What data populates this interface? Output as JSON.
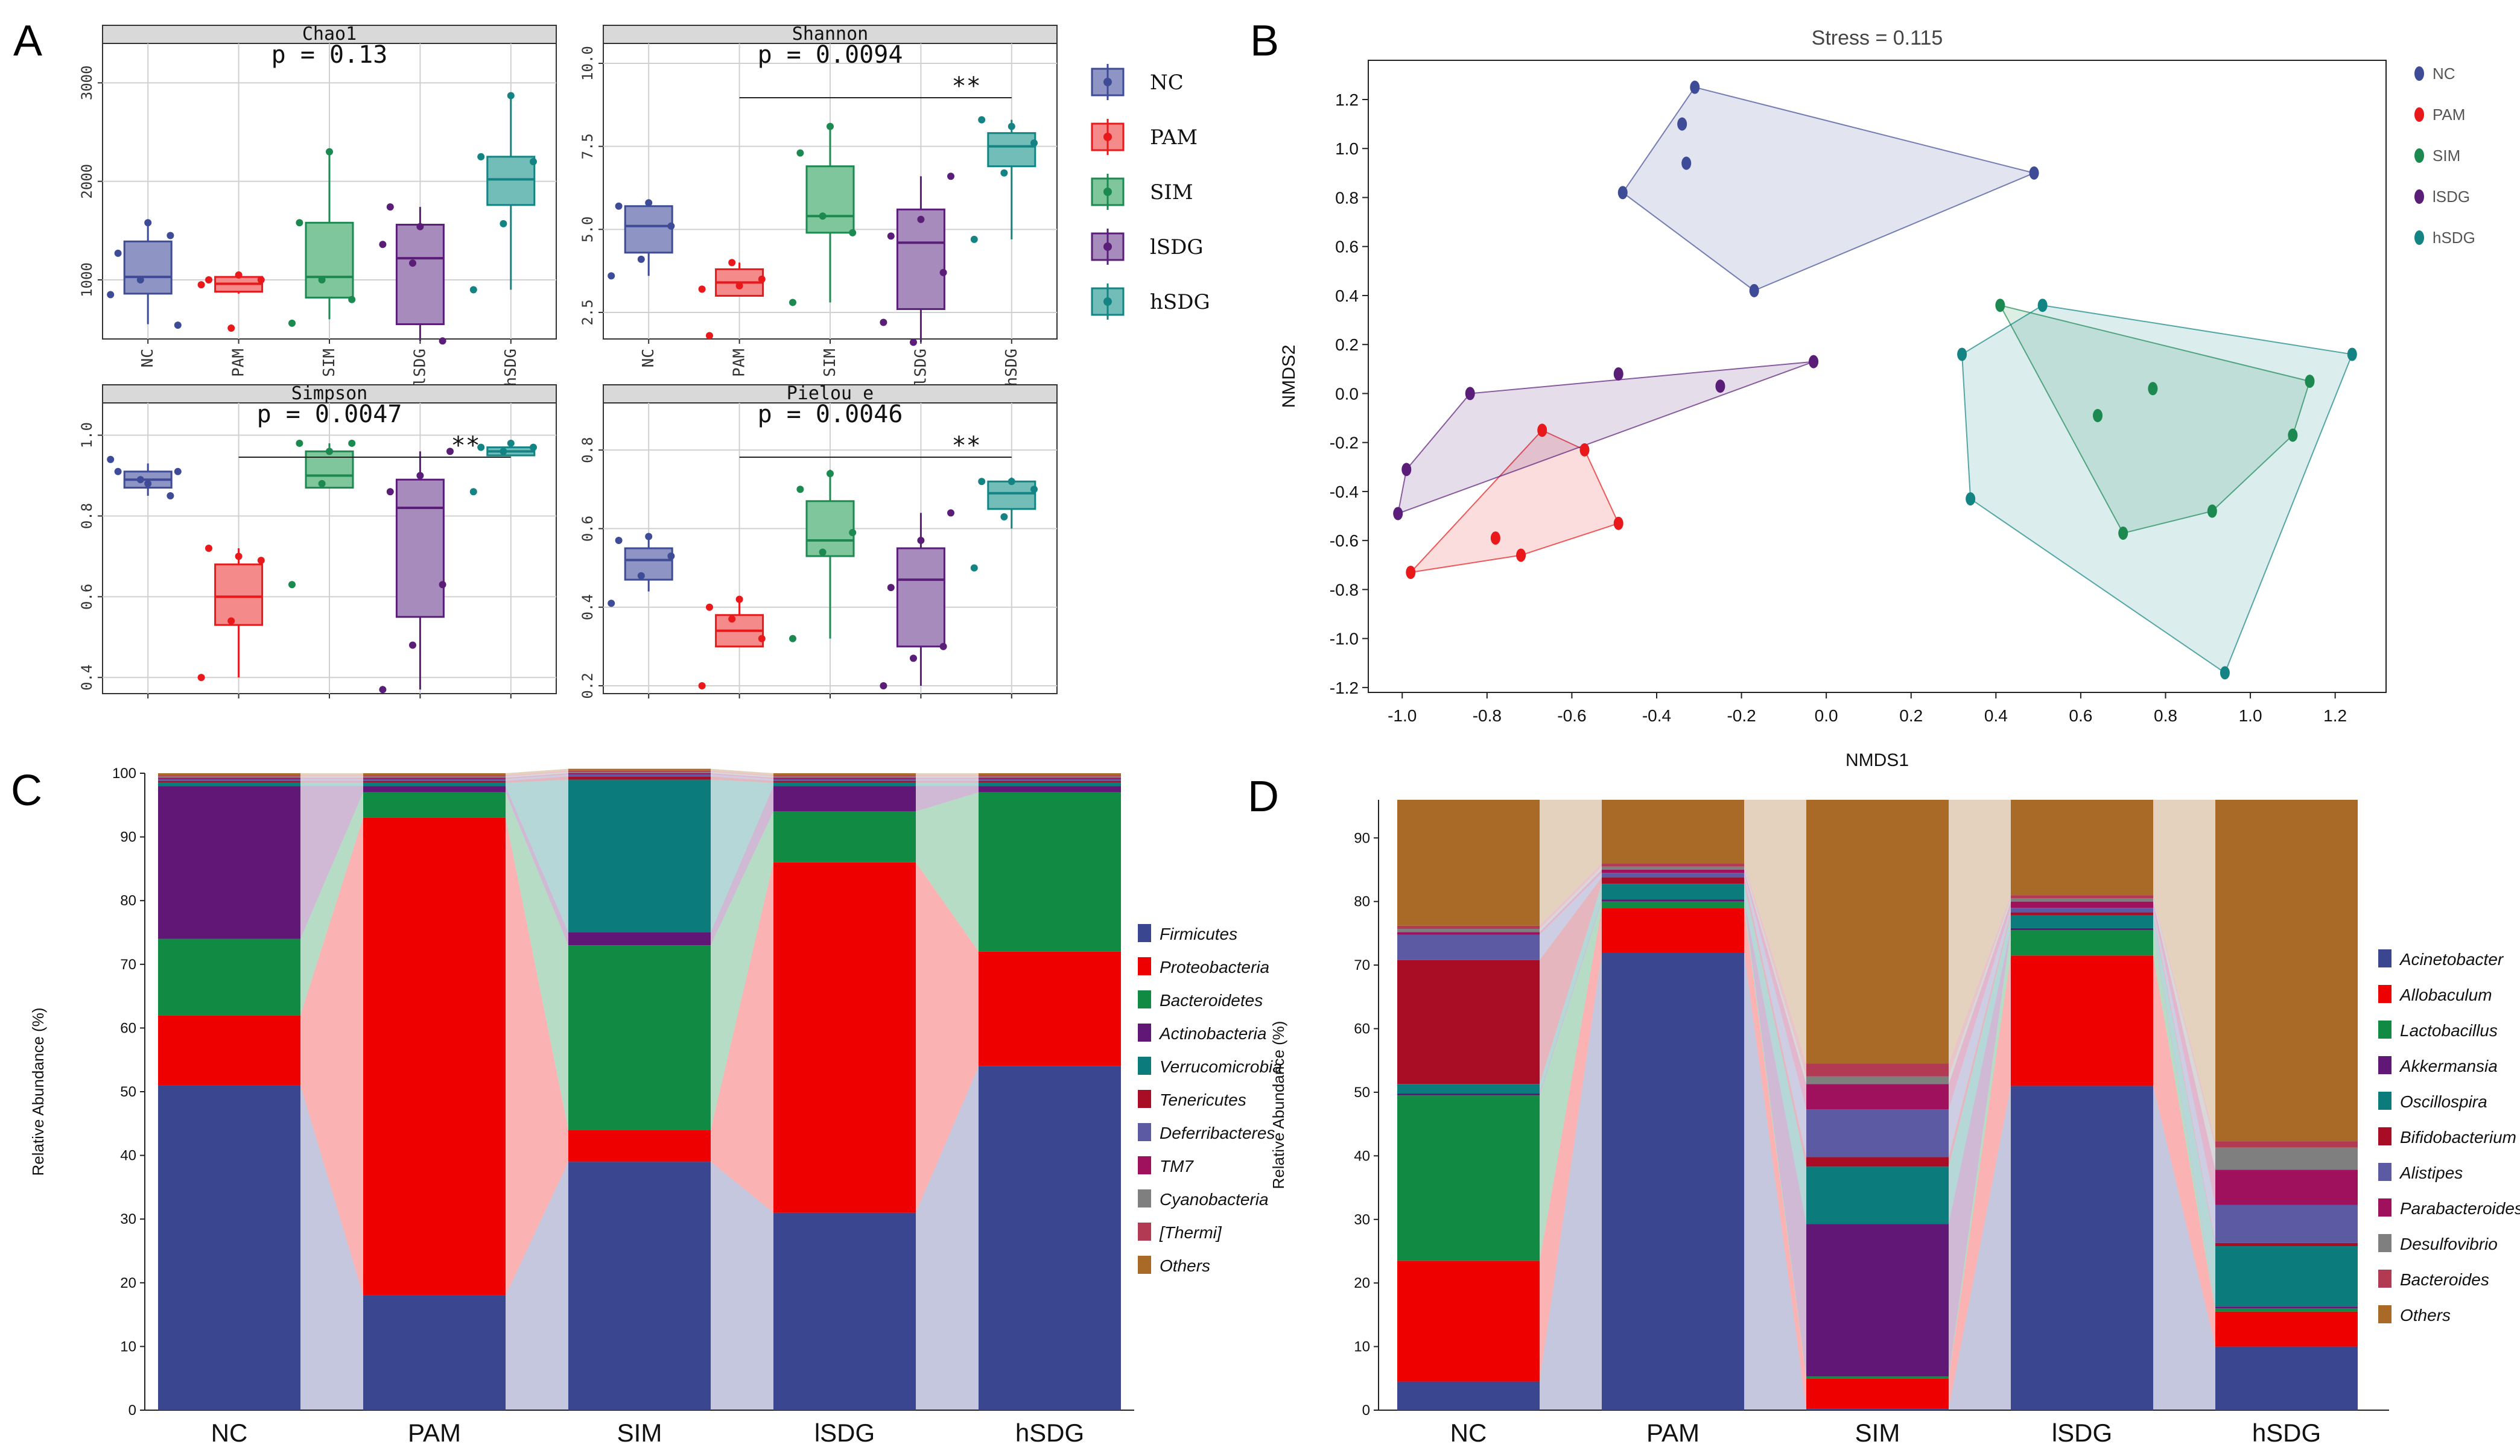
{
  "panel_labels": {
    "a": "A",
    "b": "B",
    "c": "C",
    "d": "D"
  },
  "groups": [
    "NC",
    "PAM",
    "SIM",
    "lSDG",
    "hSDG"
  ],
  "group_colors": [
    "#3e4b96",
    "#e8181b",
    "#1c8a50",
    "#5a1d78",
    "#138483"
  ],
  "box_fills": [
    "#8e94c4",
    "#f58a8a",
    "#7fc69c",
    "#a78bbd",
    "#72bdb8"
  ],
  "chart_data": [
    {
      "type": "box",
      "panel": "A",
      "title": "Chao1",
      "pvalue_text": "p = 0.13",
      "stars": "",
      "ylim": [
        400,
        3400
      ],
      "yticks": [
        "1000",
        "2000",
        "3000"
      ],
      "ytick_values": [
        1000,
        2000,
        3000
      ],
      "categories": [
        "NC",
        "PAM",
        "SIM",
        "lSDG",
        "hSDG"
      ],
      "boxes": [
        {
          "group": "NC",
          "whisker_low": 550,
          "q1": 860,
          "median": 1030,
          "q3": 1390,
          "whisker_high": 1590
        },
        {
          "group": "PAM",
          "whisker_low": 860,
          "q1": 880,
          "median": 960,
          "q3": 1030,
          "whisker_high": 1060
        },
        {
          "group": "SIM",
          "whisker_low": 600,
          "q1": 820,
          "median": 1030,
          "q3": 1580,
          "whisker_high": 2300
        },
        {
          "group": "lSDG",
          "whisker_low": 380,
          "q1": 550,
          "median": 1220,
          "q3": 1560,
          "whisker_high": 1740
        },
        {
          "group": "hSDG",
          "whisker_low": 900,
          "q1": 1760,
          "median": 2020,
          "q3": 2250,
          "whisker_high": 2850
        }
      ],
      "points": [
        [
          850,
          1000,
          1450,
          1270,
          1580,
          540
        ],
        [
          950,
          510,
          1000,
          1000,
          1050
        ],
        [
          560,
          1000,
          800,
          1580,
          2300
        ],
        [
          1360,
          1170,
          380,
          1740,
          1540
        ],
        [
          900,
          1570,
          2200,
          2250,
          2870
        ]
      ]
    },
    {
      "type": "box",
      "panel": "A",
      "title": "Shannon",
      "pvalue_text": "p = 0.0094",
      "stars": "**",
      "ylim": [
        1.7,
        10.6
      ],
      "yticks": [
        "2.5",
        "5.0",
        "7.5",
        "10.0"
      ],
      "ytick_values": [
        2.5,
        5.0,
        7.5,
        10.0
      ],
      "categories": [
        "NC",
        "PAM",
        "SIM",
        "lSDG",
        "hSDG"
      ],
      "boxes": [
        {
          "group": "NC",
          "whisker_low": 3.6,
          "q1": 4.3,
          "median": 5.1,
          "q3": 5.7,
          "whisker_high": 5.8
        },
        {
          "group": "PAM",
          "whisker_low": 3.0,
          "q1": 3.0,
          "median": 3.4,
          "q3": 3.8,
          "whisker_high": 4.0
        },
        {
          "group": "SIM",
          "whisker_low": 2.8,
          "q1": 4.9,
          "median": 5.4,
          "q3": 6.9,
          "whisker_high": 8.1
        },
        {
          "group": "lSDG",
          "whisker_low": 1.6,
          "q1": 2.6,
          "median": 4.6,
          "q3": 5.6,
          "whisker_high": 6.6
        },
        {
          "group": "hSDG",
          "whisker_low": 4.7,
          "q1": 6.9,
          "median": 7.5,
          "q3": 7.9,
          "whisker_high": 8.3
        }
      ],
      "points": [
        [
          3.6,
          4.1,
          5.1,
          5.7,
          5.8
        ],
        [
          3.2,
          4.0,
          3.5,
          1.8,
          3.3
        ],
        [
          2.8,
          5.4,
          4.9,
          7.3,
          8.1
        ],
        [
          2.2,
          1.6,
          3.7,
          4.8,
          5.3,
          6.6
        ],
        [
          4.7,
          6.7,
          7.6,
          8.3,
          8.1
        ]
      ]
    },
    {
      "type": "box",
      "panel": "A",
      "title": "Simpson",
      "pvalue_text": "p = 0.0047",
      "stars": "**",
      "ylim": [
        0.36,
        1.08
      ],
      "yticks": [
        "0.4",
        "0.6",
        "0.8",
        "1.0"
      ],
      "ytick_values": [
        0.4,
        0.6,
        0.8,
        1.0
      ],
      "categories": [
        "NC",
        "PAM",
        "SIM",
        "lSDG",
        "hSDG"
      ],
      "boxes": [
        {
          "group": "NC",
          "whisker_low": 0.85,
          "q1": 0.87,
          "median": 0.89,
          "q3": 0.91,
          "whisker_high": 0.93
        },
        {
          "group": "PAM",
          "whisker_low": 0.4,
          "q1": 0.53,
          "median": 0.6,
          "q3": 0.68,
          "whisker_high": 0.72
        },
        {
          "group": "SIM",
          "whisker_low": 0.87,
          "q1": 0.87,
          "median": 0.9,
          "q3": 0.96,
          "whisker_high": 0.98
        },
        {
          "group": "lSDG",
          "whisker_low": 0.37,
          "q1": 0.55,
          "median": 0.82,
          "q3": 0.89,
          "whisker_high": 0.96
        },
        {
          "group": "hSDG",
          "whisker_low": 0.95,
          "q1": 0.95,
          "median": 0.96,
          "q3": 0.97,
          "whisker_high": 0.98
        }
      ],
      "points": [
        [
          0.94,
          0.89,
          0.85,
          0.91,
          0.88,
          0.91
        ],
        [
          0.4,
          0.54,
          0.69,
          0.72,
          0.7
        ],
        [
          0.63,
          0.88,
          0.98,
          0.98,
          0.96
        ],
        [
          0.37,
          0.48,
          0.63,
          0.86,
          0.9,
          0.96
        ],
        [
          0.86,
          0.96,
          0.97,
          0.97,
          0.98
        ]
      ]
    },
    {
      "type": "box",
      "panel": "A",
      "title": "Pielou_e",
      "pvalue_text": "p = 0.0046",
      "stars": "**",
      "ylim": [
        0.18,
        0.92
      ],
      "yticks": [
        "0.2",
        "0.4",
        "0.6",
        "0.8"
      ],
      "ytick_values": [
        0.2,
        0.4,
        0.6,
        0.8
      ],
      "categories": [
        "NC",
        "PAM",
        "SIM",
        "lSDG",
        "hSDG"
      ],
      "boxes": [
        {
          "group": "NC",
          "whisker_low": 0.44,
          "q1": 0.47,
          "median": 0.52,
          "q3": 0.55,
          "whisker_high": 0.58
        },
        {
          "group": "PAM",
          "whisker_low": 0.3,
          "q1": 0.3,
          "median": 0.34,
          "q3": 0.38,
          "whisker_high": 0.42
        },
        {
          "group": "SIM",
          "whisker_low": 0.32,
          "q1": 0.53,
          "median": 0.57,
          "q3": 0.67,
          "whisker_high": 0.75
        },
        {
          "group": "lSDG",
          "whisker_low": 0.2,
          "q1": 0.3,
          "median": 0.47,
          "q3": 0.55,
          "whisker_high": 0.64
        },
        {
          "group": "hSDG",
          "whisker_low": 0.6,
          "q1": 0.65,
          "median": 0.69,
          "q3": 0.72,
          "whisker_high": 0.73
        }
      ],
      "points": [
        [
          0.41,
          0.48,
          0.53,
          0.57,
          0.58
        ],
        [
          0.2,
          0.37,
          0.32,
          0.4,
          0.42
        ],
        [
          0.32,
          0.54,
          0.59,
          0.7,
          0.74
        ],
        [
          0.2,
          0.27,
          0.3,
          0.45,
          0.57,
          0.64
        ],
        [
          0.5,
          0.63,
          0.7,
          0.72,
          0.72
        ]
      ]
    },
    {
      "type": "scatter",
      "panel": "B",
      "title": "Stress = 0.115",
      "xlabel": "NMDS1",
      "ylabel": "NMDS2",
      "xlim": [
        -1.08,
        1.32
      ],
      "ylim": [
        -1.22,
        1.36
      ],
      "xticks": [
        "-1.0",
        "-0.8",
        "-0.6",
        "-0.4",
        "-0.2",
        "0.0",
        "0.2",
        "0.4",
        "0.6",
        "0.8",
        "1.0",
        "1.2"
      ],
      "xtick_values": [
        -1.0,
        -0.8,
        -0.6,
        -0.4,
        -0.2,
        0.0,
        0.2,
        0.4,
        0.6,
        0.8,
        1.0,
        1.2
      ],
      "yticks": [
        "-1.2",
        "-1.0",
        "-0.8",
        "-0.6",
        "-0.4",
        "-0.2",
        "0.0",
        "0.2",
        "0.4",
        "0.6",
        "0.8",
        "1.0",
        "1.2"
      ],
      "ytick_values": [
        -1.2,
        -1.0,
        -0.8,
        -0.6,
        -0.4,
        -0.2,
        0.0,
        0.2,
        0.4,
        0.6,
        0.8,
        1.0,
        1.2
      ],
      "series": [
        {
          "name": "NC",
          "points": [
            [
              -0.31,
              1.25
            ],
            [
              -0.34,
              1.1
            ],
            [
              -0.33,
              0.94
            ],
            [
              -0.48,
              0.82
            ],
            [
              -0.17,
              0.42
            ],
            [
              0.49,
              0.9
            ]
          ],
          "hull": [
            [
              -0.31,
              1.25
            ],
            [
              0.49,
              0.9
            ],
            [
              -0.17,
              0.42
            ],
            [
              -0.48,
              0.82
            ]
          ]
        },
        {
          "name": "PAM",
          "points": [
            [
              -0.67,
              -0.15
            ],
            [
              -0.57,
              -0.23
            ],
            [
              -0.49,
              -0.53
            ],
            [
              -0.78,
              -0.59
            ],
            [
              -0.72,
              -0.66
            ],
            [
              -0.98,
              -0.73
            ]
          ],
          "hull": [
            [
              -0.67,
              -0.15
            ],
            [
              -0.57,
              -0.23
            ],
            [
              -0.49,
              -0.53
            ],
            [
              -0.72,
              -0.66
            ],
            [
              -0.98,
              -0.73
            ]
          ]
        },
        {
          "name": "SIM",
          "points": [
            [
              0.41,
              0.36
            ],
            [
              1.14,
              0.05
            ],
            [
              0.77,
              0.02
            ],
            [
              0.64,
              -0.09
            ],
            [
              1.1,
              -0.17
            ],
            [
              0.91,
              -0.48
            ],
            [
              0.7,
              -0.57
            ]
          ],
          "hull": [
            [
              0.41,
              0.36
            ],
            [
              1.14,
              0.05
            ],
            [
              1.1,
              -0.17
            ],
            [
              0.91,
              -0.48
            ],
            [
              0.7,
              -0.57
            ]
          ]
        },
        {
          "name": "lSDG",
          "points": [
            [
              -0.03,
              0.13
            ],
            [
              -0.49,
              0.08
            ],
            [
              -0.25,
              0.03
            ],
            [
              -0.84,
              0.0
            ],
            [
              -0.99,
              -0.31
            ],
            [
              -1.01,
              -0.49
            ]
          ],
          "hull": [
            [
              -0.03,
              0.13
            ],
            [
              -0.84,
              0.0
            ],
            [
              -0.99,
              -0.31
            ],
            [
              -1.01,
              -0.49
            ]
          ]
        },
        {
          "name": "hSDG",
          "points": [
            [
              0.51,
              0.36
            ],
            [
              1.24,
              0.16
            ],
            [
              0.32,
              0.16
            ],
            [
              0.34,
              -0.43
            ],
            [
              0.94,
              -1.14
            ]
          ],
          "hull": [
            [
              0.51,
              0.36
            ],
            [
              1.24,
              0.16
            ],
            [
              0.94,
              -1.14
            ],
            [
              0.34,
              -0.43
            ],
            [
              0.32,
              0.16
            ]
          ]
        }
      ]
    },
    {
      "type": "stacked-bar",
      "panel": "C",
      "ylabel": "Relative Abundance (%)",
      "ylim": [
        0,
        100
      ],
      "yticks": [
        "0",
        "10",
        "20",
        "30",
        "40",
        "50",
        "60",
        "70",
        "80",
        "90",
        "100"
      ],
      "ytick_values": [
        0,
        10,
        20,
        30,
        40,
        50,
        60,
        70,
        80,
        90,
        100
      ],
      "categories": [
        "NC",
        "PAM",
        "SIM",
        "lSDG",
        "hSDG"
      ],
      "series": [
        {
          "name": "Firmicutes",
          "color": "#3a4690",
          "values": [
            51,
            18,
            39,
            31,
            54
          ]
        },
        {
          "name": "Proteobacteria",
          "color": "#ee0000",
          "values": [
            11,
            75,
            5,
            55,
            18
          ]
        },
        {
          "name": "Bacteroidetes",
          "color": "#118a43",
          "values": [
            12,
            4,
            29,
            8,
            25
          ]
        },
        {
          "name": "Actinobacteria",
          "color": "#611775",
          "values": [
            24,
            1,
            2,
            4,
            1
          ]
        },
        {
          "name": "Verrucomicrobia",
          "color": "#0b7b7b",
          "values": [
            0.5,
            0.5,
            24,
            0.5,
            0.5
          ]
        },
        {
          "name": "Tenericutes",
          "color": "#a80d25",
          "values": [
            0.3,
            0.3,
            0.5,
            0.3,
            0.3
          ]
        },
        {
          "name": "Deferribacteres",
          "color": "#5b5aa2",
          "values": [
            0.3,
            0.3,
            0.3,
            0.3,
            0.3
          ]
        },
        {
          "name": "TM7",
          "color": "#a0115d",
          "values": [
            0.2,
            0.2,
            0.2,
            0.2,
            0.2
          ]
        },
        {
          "name": "Cyanobacteria",
          "color": "#7f7f7f",
          "values": [
            0.2,
            0.2,
            0.2,
            0.2,
            0.2
          ]
        },
        {
          "name": "[Thermi]",
          "color": "#b23a52",
          "values": [
            0.2,
            0.2,
            0.2,
            0.2,
            0.2
          ]
        },
        {
          "name": "Others",
          "color": "#a96a28",
          "values": [
            0.3,
            0.3,
            0.3,
            0.3,
            0.3
          ]
        }
      ],
      "legend_labels": [
        "Firmicutes",
        "Proteobacteria",
        "Bacteroidetes",
        "Actinobacteria",
        "Verrucomicrobia",
        "Tenericutes",
        "Deferribacteres",
        "TM7",
        "Cyanobacteria",
        "[Thermi]",
        "Others"
      ]
    },
    {
      "type": "stacked-bar",
      "panel": "D",
      "ylabel": "Relative Abundance (%)",
      "ylim": [
        0,
        96
      ],
      "yticks": [
        "0",
        "10",
        "20",
        "30",
        "40",
        "50",
        "60",
        "70",
        "80",
        "90"
      ],
      "ytick_values": [
        0,
        10,
        20,
        30,
        40,
        50,
        60,
        70,
        80,
        90
      ],
      "categories": [
        "NC",
        "PAM",
        "SIM",
        "lSDG",
        "hSDG"
      ],
      "series": [
        {
          "name": "Acinetobacter",
          "color": "#3a4690",
          "values": [
            4.5,
            72,
            0.2,
            51,
            10
          ]
        },
        {
          "name": "Allobaculum",
          "color": "#ee0000",
          "values": [
            19,
            7,
            4.8,
            20.5,
            5.5
          ]
        },
        {
          "name": "Lactobacillus",
          "color": "#118a43",
          "values": [
            26,
            1,
            0.3,
            4,
            0.5
          ]
        },
        {
          "name": "Akkermansia",
          "color": "#611775",
          "values": [
            0.3,
            0.3,
            24,
            0.3,
            0.3
          ]
        },
        {
          "name": "Oscillospira",
          "color": "#0b7b7b",
          "values": [
            1.5,
            2.5,
            9,
            2,
            9.5
          ]
        },
        {
          "name": "Bifidobacterium",
          "color": "#a80d25",
          "values": [
            19.5,
            1,
            1.5,
            0.5,
            0.5
          ]
        },
        {
          "name": "Alistipes",
          "color": "#5b5aa2",
          "values": [
            4,
            0.7,
            7.5,
            0.7,
            6
          ]
        },
        {
          "name": "Parabacteroides",
          "color": "#a0115d",
          "values": [
            0.4,
            0.5,
            4,
            1,
            5.5
          ]
        },
        {
          "name": "Desulfovibrio",
          "color": "#7f7f7f",
          "values": [
            0.5,
            0.5,
            1.2,
            0.5,
            3.5
          ]
        },
        {
          "name": "Bacteroides",
          "color": "#b23a52",
          "values": [
            0.5,
            0.5,
            2,
            0.5,
            1
          ]
        },
        {
          "name": "Others",
          "color": "#a96a28",
          "values": [
            19.8,
            10,
            41.5,
            15,
            53.7
          ]
        }
      ],
      "legend_labels": [
        "Acinetobacter",
        "Allobaculum",
        "Lactobacillus",
        "Akkermansia",
        "Oscillospira",
        "Bifidobacterium",
        "Alistipes",
        "Parabacteroides",
        "Desulfovibrio",
        "Bacteroides",
        "Others"
      ]
    }
  ]
}
